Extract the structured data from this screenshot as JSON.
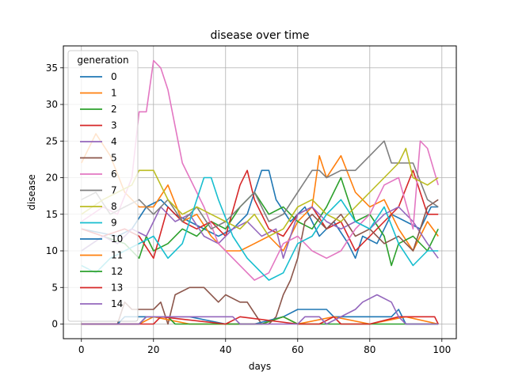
{
  "chart_data": {
    "type": "line",
    "title": "disease over time",
    "xlabel": "days",
    "ylabel": "disease",
    "xlim": [
      -5,
      104
    ],
    "ylim": [
      -2,
      38
    ],
    "xticks": [
      0,
      20,
      40,
      60,
      80,
      100
    ],
    "yticks": [
      0,
      5,
      10,
      15,
      20,
      25,
      30,
      35
    ],
    "grid": true,
    "legend": {
      "title": "generation",
      "position": "upper-left"
    },
    "series": [
      {
        "name": "0",
        "color": "#1f77b4",
        "x": [
          0,
          10,
          14,
          18,
          22,
          26,
          30,
          34,
          38,
          42,
          46,
          50,
          52,
          54,
          58,
          62,
          66,
          70,
          74,
          76,
          78,
          82,
          86,
          90,
          94,
          97,
          99
        ],
        "y": [
          13,
          12,
          13,
          16,
          17,
          15,
          14,
          13,
          12,
          13,
          15,
          21,
          21,
          17,
          14,
          16,
          12,
          14,
          11,
          9,
          12,
          11,
          15,
          14,
          13,
          16,
          16
        ]
      },
      {
        "name": "1",
        "color": "#ff7f0e",
        "x": [
          0,
          4,
          8,
          12,
          16,
          20,
          24,
          28,
          32,
          36,
          40,
          44,
          48,
          52,
          56,
          60,
          64,
          66,
          68,
          72,
          76,
          80,
          84,
          88,
          92,
          96,
          99
        ],
        "y": [
          22,
          26,
          23,
          18,
          16,
          16,
          19,
          14,
          15,
          12,
          10,
          10,
          11,
          12,
          10,
          14,
          16,
          23,
          20,
          23,
          18,
          16,
          17,
          13,
          10,
          14,
          12
        ]
      },
      {
        "name": "2",
        "color": "#2ca02c",
        "x": [
          0,
          6,
          12,
          16,
          18,
          20,
          24,
          28,
          32,
          36,
          40,
          44,
          48,
          52,
          56,
          60,
          64,
          68,
          72,
          76,
          80,
          84,
          86,
          88,
          92,
          96,
          99
        ],
        "y": [
          10,
          12,
          11,
          9,
          12,
          10,
          11,
          13,
          12,
          14,
          13,
          16,
          18,
          15,
          16,
          14,
          13,
          16,
          20,
          14,
          15,
          12,
          8,
          11,
          12,
          10,
          13
        ]
      },
      {
        "name": "3",
        "color": "#d62728",
        "x": [
          0,
          6,
          12,
          16,
          20,
          24,
          28,
          32,
          36,
          40,
          44,
          46,
          48,
          52,
          56,
          60,
          64,
          68,
          72,
          76,
          80,
          84,
          88,
          92,
          96,
          99
        ],
        "y": [
          13,
          12,
          13,
          12,
          9,
          16,
          14,
          13,
          14,
          12,
          19,
          21,
          17,
          13,
          12,
          15,
          16,
          13,
          14,
          10,
          12,
          14,
          16,
          21,
          15,
          15
        ]
      },
      {
        "name": "4",
        "color": "#9467bd",
        "x": [
          0,
          6,
          10,
          14,
          18,
          22,
          26,
          30,
          34,
          38,
          42,
          46,
          50,
          54,
          56,
          60,
          64,
          68,
          72,
          76,
          80,
          84,
          88,
          92,
          96,
          99
        ],
        "y": [
          10,
          12,
          11,
          13,
          12,
          16,
          14,
          15,
          12,
          11,
          13,
          14,
          12,
          13,
          9,
          15,
          16,
          14,
          13,
          14,
          13,
          15,
          16,
          14,
          11,
          9
        ]
      },
      {
        "name": "5",
        "color": "#8c564b",
        "x": [
          0,
          10,
          12,
          14,
          20,
          22,
          24,
          26,
          30,
          34,
          38,
          40,
          44,
          46,
          50,
          52,
          54,
          56,
          58,
          60,
          62,
          64,
          68,
          72,
          76,
          80,
          84,
          88,
          92,
          96,
          99
        ],
        "y": [
          0,
          0,
          3,
          2,
          2,
          3,
          0,
          4,
          5,
          5,
          3,
          4,
          3,
          3,
          0,
          0,
          1,
          4,
          6,
          9,
          14,
          15,
          13,
          15,
          12,
          13,
          11,
          12,
          10,
          16,
          17
        ]
      },
      {
        "name": "6",
        "color": "#e377c2",
        "x": [
          0,
          6,
          10,
          14,
          16,
          18,
          20,
          22,
          24,
          26,
          28,
          30,
          34,
          38,
          42,
          46,
          48,
          52,
          56,
          60,
          64,
          68,
          72,
          76,
          80,
          84,
          88,
          92,
          94,
          96,
          99
        ],
        "y": [
          14,
          16,
          15,
          20,
          29,
          29,
          36,
          35,
          32,
          27,
          22,
          20,
          16,
          11,
          9,
          7,
          6,
          7,
          11,
          12,
          10,
          9,
          10,
          13,
          15,
          19,
          20,
          13,
          25,
          24,
          19
        ]
      },
      {
        "name": "7",
        "color": "#7f7f7f",
        "x": [
          0,
          4,
          8,
          12,
          16,
          20,
          24,
          28,
          32,
          36,
          40,
          44,
          48,
          52,
          56,
          60,
          64,
          66,
          68,
          72,
          76,
          80,
          82,
          84,
          86,
          88,
          92,
          96,
          99
        ],
        "y": [
          17,
          18,
          15,
          16,
          17,
          15,
          17,
          14,
          16,
          13,
          14,
          16,
          18,
          14,
          15,
          18,
          21,
          21,
          20,
          21,
          21,
          23,
          24,
          25,
          22,
          22,
          22,
          17,
          16
        ]
      },
      {
        "name": "8",
        "color": "#bcbd22",
        "x": [
          0,
          6,
          10,
          14,
          16,
          20,
          24,
          28,
          32,
          36,
          40,
          44,
          48,
          52,
          56,
          60,
          64,
          68,
          72,
          76,
          80,
          84,
          88,
          90,
          92,
          96,
          99
        ],
        "y": [
          15,
          17,
          18,
          19,
          21,
          21,
          17,
          15,
          16,
          15,
          14,
          13,
          15,
          12,
          13,
          16,
          17,
          15,
          14,
          16,
          18,
          20,
          22,
          24,
          20,
          19,
          20
        ]
      },
      {
        "name": "9",
        "color": "#17becf",
        "x": [
          0,
          4,
          8,
          12,
          16,
          20,
          24,
          28,
          32,
          34,
          36,
          38,
          42,
          46,
          50,
          52,
          56,
          60,
          64,
          68,
          72,
          76,
          80,
          84,
          88,
          92,
          96,
          99
        ],
        "y": [
          8,
          7,
          9,
          10,
          11,
          12,
          9,
          11,
          17,
          20,
          20,
          17,
          12,
          9,
          7,
          6,
          7,
          11,
          12,
          15,
          17,
          14,
          13,
          16,
          11,
          8,
          10,
          10
        ]
      },
      {
        "name": "10",
        "color": "#1f77b4",
        "x": [
          0,
          10,
          12,
          30,
          40,
          48,
          56,
          60,
          68,
          70,
          80,
          86,
          88,
          90,
          99
        ],
        "y": [
          0,
          0,
          1,
          1,
          0,
          0,
          1,
          2,
          2,
          1,
          1,
          1,
          2,
          0,
          0
        ]
      },
      {
        "name": "11",
        "color": "#ff7f0e",
        "x": [
          0,
          16,
          20,
          30,
          50,
          56,
          60,
          70,
          80,
          90,
          99
        ],
        "y": [
          0,
          0,
          1,
          0,
          0,
          1,
          0,
          1,
          0,
          1,
          0
        ]
      },
      {
        "name": "12",
        "color": "#2ca02c",
        "x": [
          0,
          16,
          18,
          24,
          26,
          34,
          50,
          56,
          60,
          70,
          80,
          99
        ],
        "y": [
          0,
          0,
          1,
          1,
          0,
          0,
          0,
          1,
          0,
          0,
          0,
          0
        ]
      },
      {
        "name": "13",
        "color": "#d62728",
        "x": [
          0,
          20,
          22,
          40,
          44,
          60,
          66,
          70,
          72,
          80,
          88,
          92,
          98,
          99
        ],
        "y": [
          0,
          0,
          1,
          0,
          1,
          0,
          0,
          1,
          0,
          0,
          1,
          1,
          1,
          0
        ]
      },
      {
        "name": "14",
        "color": "#9467bd",
        "x": [
          0,
          16,
          18,
          28,
          30,
          42,
          44,
          60,
          62,
          66,
          68,
          76,
          78,
          82,
          86,
          88,
          90,
          99
        ],
        "y": [
          0,
          0,
          1,
          1,
          1,
          1,
          0,
          0,
          1,
          1,
          0,
          2,
          3,
          4,
          3,
          1,
          0,
          0
        ]
      }
    ]
  }
}
